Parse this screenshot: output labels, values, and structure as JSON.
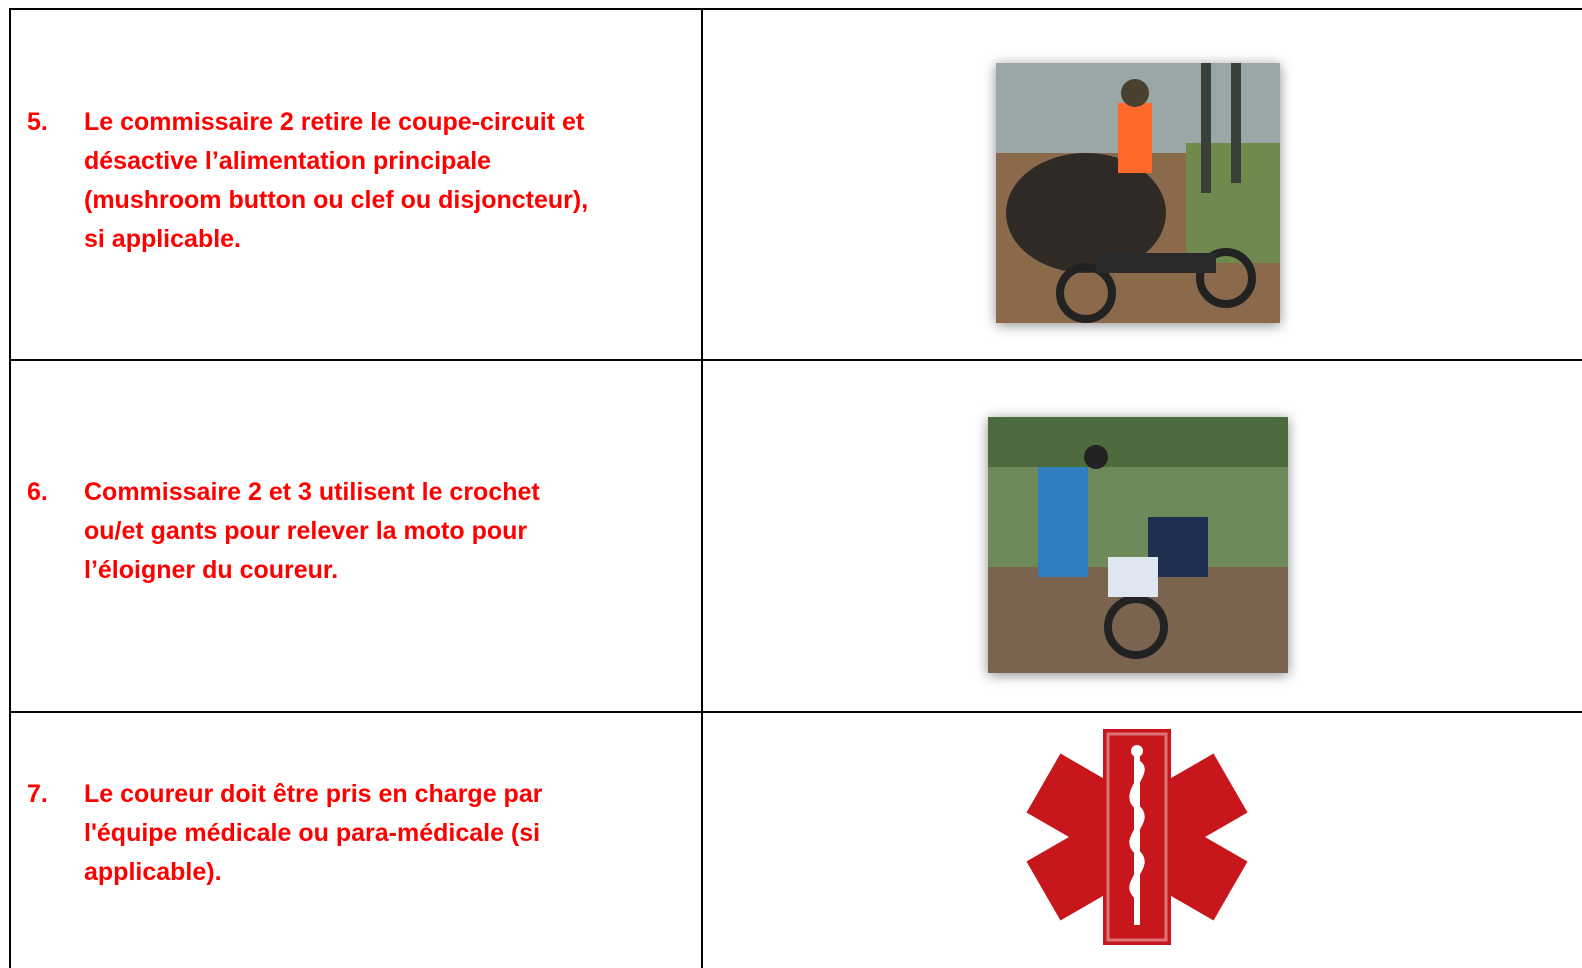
{
  "table": {
    "rows": [
      {
        "number": "5.",
        "lines": [
          "Le commissaire 2 retire le coupe-circuit et",
          "désactive l’alimentation principale",
          "(mushroom button ou clef ou disjoncteur),",
          "si applicable."
        ]
      },
      {
        "number": "6.",
        "lines": [
          "Commissaire 2 et 3 utilisent le crochet",
          "ou/et gants pour relever la moto pour",
          "l’éloigner du coureur."
        ]
      },
      {
        "number": "7.",
        "lines": [
          "Le coureur doit être pris en charge par",
          "l'équipe médicale ou para-médicale (si",
          "applicable)."
        ]
      }
    ]
  }
}
